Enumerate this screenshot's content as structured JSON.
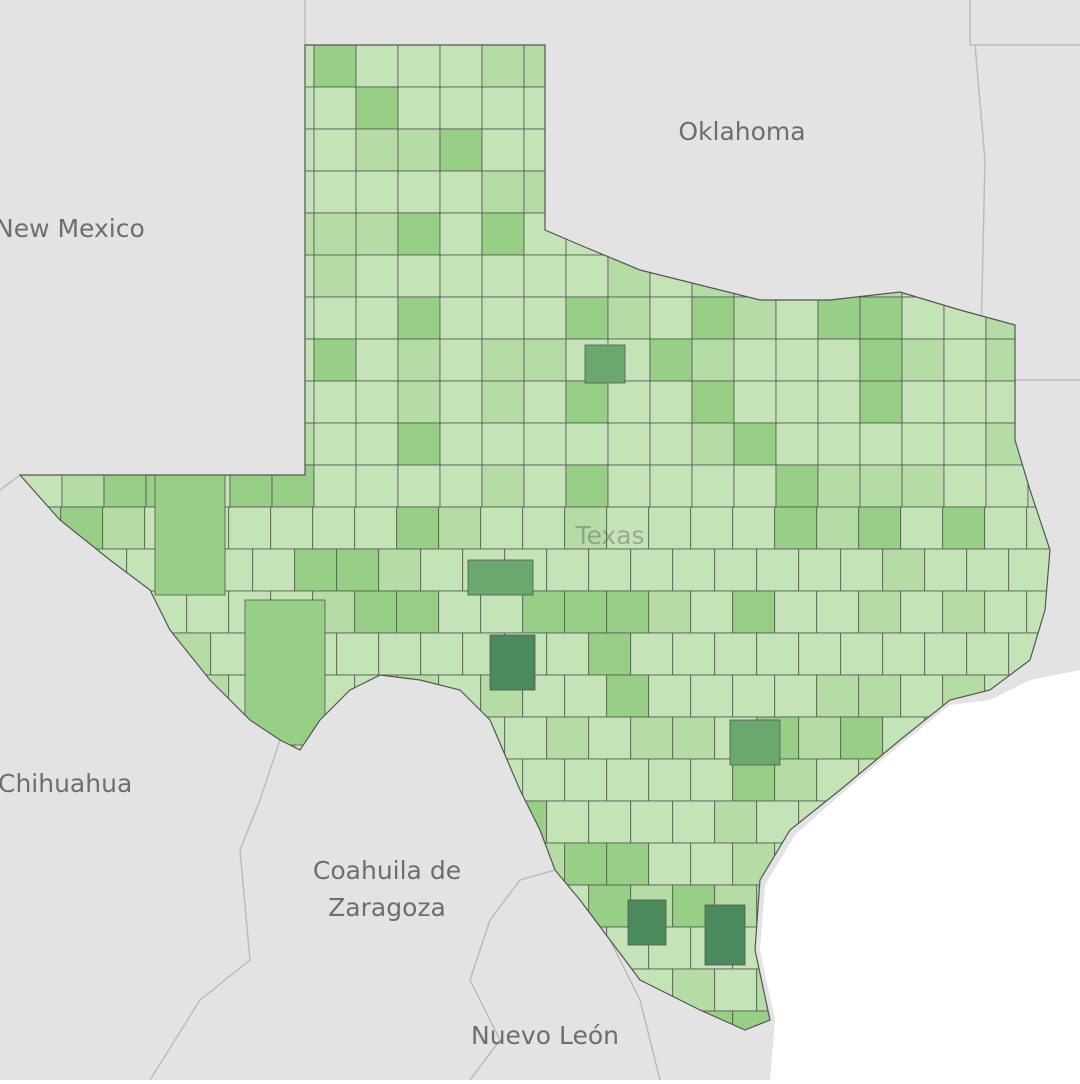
{
  "labels": {
    "oklahoma": "Oklahoma",
    "new_mexico": "New Mexico",
    "chihuahua": "Chihuahua",
    "coahuila": [
      "Coahuila de",
      "Zaragoza"
    ],
    "nuevo_leon": "Nuevo León",
    "texas": "Texas"
  }
}
